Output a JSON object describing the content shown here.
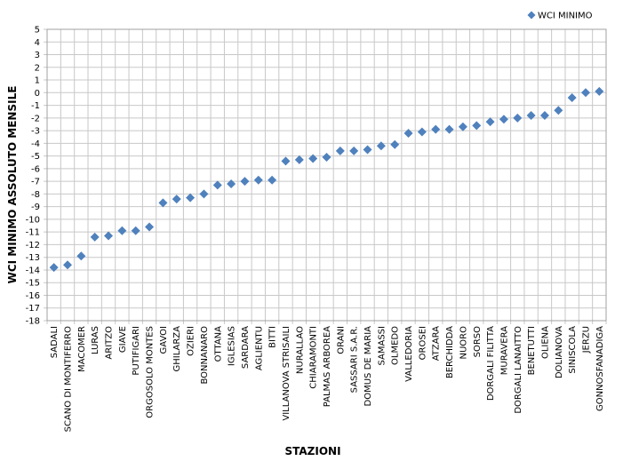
{
  "chart_data": {
    "type": "scatter",
    "legend_position": "top-right",
    "x_label": "STAZIONI",
    "y_label": "WCI MINIMO ASSOLUTO MENSILE",
    "grid": true,
    "categories": [
      "SADALI",
      "SCANO DI MONTIFERRO",
      "MACOMER",
      "LURAS",
      "ARITZO",
      "GIAVE",
      "PUTIFIGARI",
      "ORGOSOLO MONTES",
      "GAVOI",
      "GHILARZA",
      "OZIERI",
      "BONNANARO",
      "OTTANA",
      "IGLESIAS",
      "SARDARA",
      "AGLIENTU",
      "BITTI",
      "VILLANOVA STRISAILI",
      "NURALLAO",
      "CHIARAMONTI",
      "PALMAS ARBOREA",
      "ORANI",
      "SASSARI S.A.R.",
      "DOMUS DE MARIA",
      "SAMASSI",
      "OLMEDO",
      "VALLEDORIA",
      "OROSEI",
      "ATZARA",
      "BERCHIDDA",
      "NUORO",
      "SORSO",
      "DORGALI FILITTA",
      "MURAVERA",
      "DORGALI LANAITTO",
      "BENETUTTI",
      "OLIENA",
      "DOLIANOVA",
      "SINISCOLA",
      "JERZU",
      "GONNOSFANADIGA"
    ],
    "series": [
      {
        "name": "WCI MINIMO",
        "color": "#4f81bd",
        "values": [
          -13.8,
          -13.6,
          -12.9,
          -11.4,
          -11.3,
          -10.9,
          -10.9,
          -10.6,
          -8.7,
          -8.4,
          -8.3,
          -8.0,
          -7.3,
          -7.2,
          -7.0,
          -6.9,
          -6.9,
          -5.4,
          -5.3,
          -5.2,
          -5.1,
          -4.6,
          -4.6,
          -4.5,
          -4.2,
          -4.1,
          -3.2,
          -3.1,
          -2.9,
          -2.9,
          -2.7,
          -2.6,
          -2.3,
          -2.1,
          -2.0,
          -1.8,
          -1.8,
          -1.4,
          -0.4,
          0.0,
          0.1
        ]
      }
    ],
    "ylim": [
      -18,
      5
    ],
    "yticks": [
      -18,
      -17,
      -16,
      -15,
      -14,
      -13,
      -12,
      -11,
      -10,
      -9,
      -8,
      -7,
      -6,
      -5,
      -4,
      -3,
      -2,
      -1,
      0,
      1,
      2,
      3,
      4,
      5
    ]
  }
}
